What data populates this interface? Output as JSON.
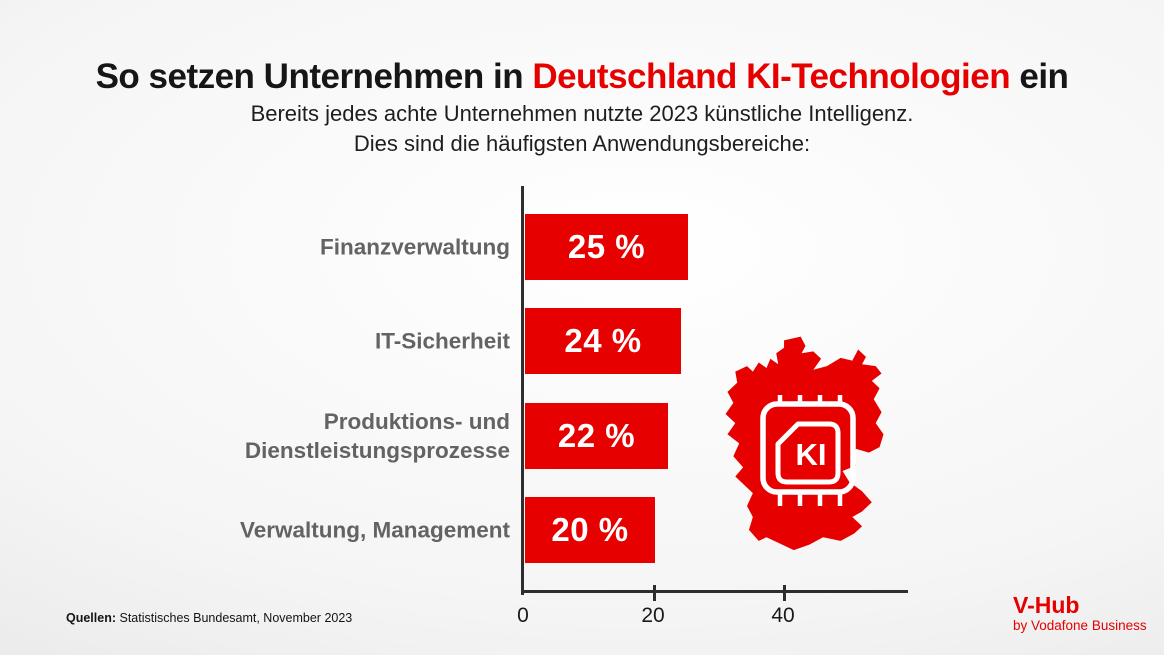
{
  "title": {
    "part1": "So setzen Unternehmen in ",
    "part2_red": "Deutschland KI-Technologien",
    "part3": " ein"
  },
  "subtitle": {
    "line1": "Bereits jedes achte Unternehmen nutzte 2023 künstliche Intelligenz.",
    "line2": "Dies sind die häufigsten Anwendungsbereiche:"
  },
  "chart_data": {
    "type": "bar",
    "orientation": "horizontal",
    "categories": [
      "Finanzverwaltung",
      "IT-Sicherheit",
      "Produktions- und\nDienstleistungsprozesse",
      "Verwaltung, Management"
    ],
    "values": [
      25,
      24,
      22,
      20
    ],
    "value_labels": [
      "25 %",
      "24 %",
      "22 %",
      "20 %"
    ],
    "x_ticks": [
      0,
      20,
      40
    ],
    "xlim": [
      0,
      59
    ],
    "grid": false,
    "legend": "none",
    "bar_color": "#e60000",
    "value_label_color": "#ffffff",
    "category_label_color": "#636363",
    "axis_color": "#2e2e2e"
  },
  "map": {
    "name": "germany-silhouette-with-ki-chip",
    "chip_label": "KI",
    "color": "#e60000"
  },
  "source": {
    "label": "Quellen:",
    "text": " Statistisches Bundesamt, November 2023"
  },
  "brand": {
    "name": "V-Hub",
    "byline": "by Vodafone Business",
    "color": "#e60000"
  }
}
